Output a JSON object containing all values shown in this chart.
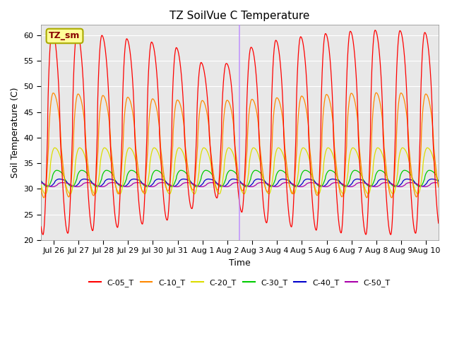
{
  "title": "TZ SoilVue C Temperature",
  "xlabel": "Time",
  "ylabel": "Soil Temperature (C)",
  "ylim": [
    20,
    62
  ],
  "background_color": "#e8e8e8",
  "grid_color": "#ffffff",
  "series": {
    "C-05_T": {
      "color": "#ff0000",
      "base": 41.0,
      "amp": 18.5,
      "lag": 0.0,
      "zorder": 5
    },
    "C-10_T": {
      "color": "#ff8800",
      "base": 38.5,
      "amp": 9.5,
      "lag": 0.04,
      "zorder": 4
    },
    "C-20_T": {
      "color": "#dddd00",
      "base": 33.5,
      "amp": 4.5,
      "lag": 0.1,
      "zorder": 3
    },
    "C-30_T": {
      "color": "#00cc00",
      "base": 32.0,
      "amp": 1.6,
      "lag": 0.18,
      "zorder": 2
    },
    "C-40_T": {
      "color": "#0000cc",
      "base": 31.2,
      "amp": 0.7,
      "lag": 0.28,
      "zorder": 2
    },
    "C-50_T": {
      "color": "#aa00aa",
      "base": 30.8,
      "amp": 0.4,
      "lag": 0.4,
      "zorder": 2
    }
  },
  "legend_label": "TZ_sm",
  "legend_box_color": "#ffff99",
  "legend_box_edge": "#aaaa00",
  "tick_labels": [
    "Jul 26",
    "Jul 27",
    "Jul 28",
    "Jul 29",
    "Jul 30",
    "Jul 31",
    "Aug 1",
    "Aug 2",
    "Aug 3",
    "Aug 4",
    "Aug 5",
    "Aug 6",
    "Aug 7",
    "Aug 8",
    "Aug 9",
    "Aug 10"
  ],
  "tick_positions": [
    1,
    2,
    3,
    4,
    5,
    6,
    7,
    8,
    9,
    10,
    11,
    12,
    13,
    14,
    15,
    16
  ],
  "vline_pos": 8.48,
  "vline_color": "#bb88ff",
  "xlim": [
    0.5,
    16.5
  ]
}
